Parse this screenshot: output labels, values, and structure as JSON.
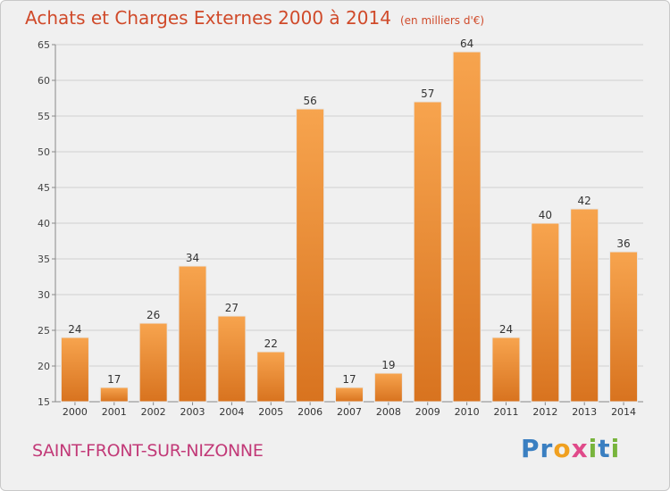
{
  "header": {
    "title": "Achats et Charges Externes 2000 à 2014",
    "subtitle": "(en milliers d'€)"
  },
  "footer": {
    "commune": "SAINT-FRONT-SUR-NIZONNE",
    "logo": [
      "P",
      "r",
      "o",
      "x",
      "i",
      "t",
      "i"
    ]
  },
  "colors": {
    "bar_light": "#f7a44e",
    "bar_dark": "#d8731f",
    "title": "#d04a2a",
    "commune": "#c23a78",
    "grid": "#cfcfcf",
    "logo": [
      "#3a7fc1",
      "#3a7fc1",
      "#f0a020",
      "#e04a8a",
      "#78b43c",
      "#3a7fc1",
      "#78b43c"
    ]
  },
  "chart_data": {
    "type": "bar",
    "title": "Achats et Charges Externes 2000 à 2014",
    "subtitle": "(en milliers d'€)",
    "categories": [
      "2000",
      "2001",
      "2002",
      "2003",
      "2004",
      "2005",
      "2006",
      "2007",
      "2008",
      "2009",
      "2010",
      "2011",
      "2012",
      "2013",
      "2014"
    ],
    "values": [
      24,
      17,
      26,
      34,
      27,
      22,
      56,
      17,
      19,
      57,
      64,
      24,
      40,
      42,
      36
    ],
    "yticks": [
      15,
      20,
      25,
      30,
      35,
      40,
      45,
      50,
      55,
      60,
      65
    ],
    "ylim": [
      15,
      65
    ],
    "grid": true,
    "legend": "none",
    "xlabel": "",
    "ylabel": ""
  }
}
